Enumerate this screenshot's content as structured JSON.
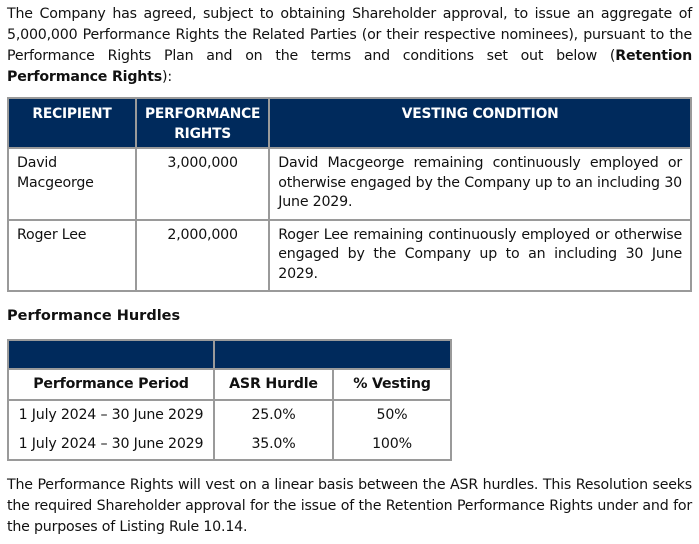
{
  "intro": {
    "text": "The Company has agreed, subject to obtaining Shareholder approval, to issue an aggregate of 5,000,000 Performance Rights the Related Parties (or their respective nominees), pursuant to the Performance Rights Plan and on the terms and conditions set out below (",
    "bold": "Retention Performance Rights",
    "end": "):"
  },
  "rights_table": {
    "headers": [
      "RECIPIENT",
      "PERFORMANCE RIGHTS",
      "VESTING CONDITION"
    ],
    "rows": [
      {
        "recipient": "David Macgeorge",
        "rights": "3,000,000",
        "condition": "David Macgeorge remaining continuously employed or otherwise engaged by the Company up to an including 30 June 2029."
      },
      {
        "recipient": "Roger Lee",
        "rights": "2,000,000",
        "condition": "Roger Lee remaining continuously employed or otherwise engaged by the Company up to an including 30 June 2029."
      }
    ]
  },
  "hurdles": {
    "heading": "Performance Hurdles",
    "headers": [
      "Performance Period",
      "ASR Hurdle",
      "% Vesting"
    ],
    "rows": [
      {
        "period": "1 July 2024 – 30 June 2029",
        "hurdle": "25.0%",
        "vesting": "50%"
      },
      {
        "period": "1 July 2024 – 30 June 2029",
        "hurdle": "35.0%",
        "vesting": "100%"
      }
    ]
  },
  "closing": "The Performance Rights will vest on a linear basis between the ASR hurdles. This Resolution seeks the required Shareholder approval for the issue of the Retention Performance Rights under and for the purposes of Listing Rule 10.14."
}
